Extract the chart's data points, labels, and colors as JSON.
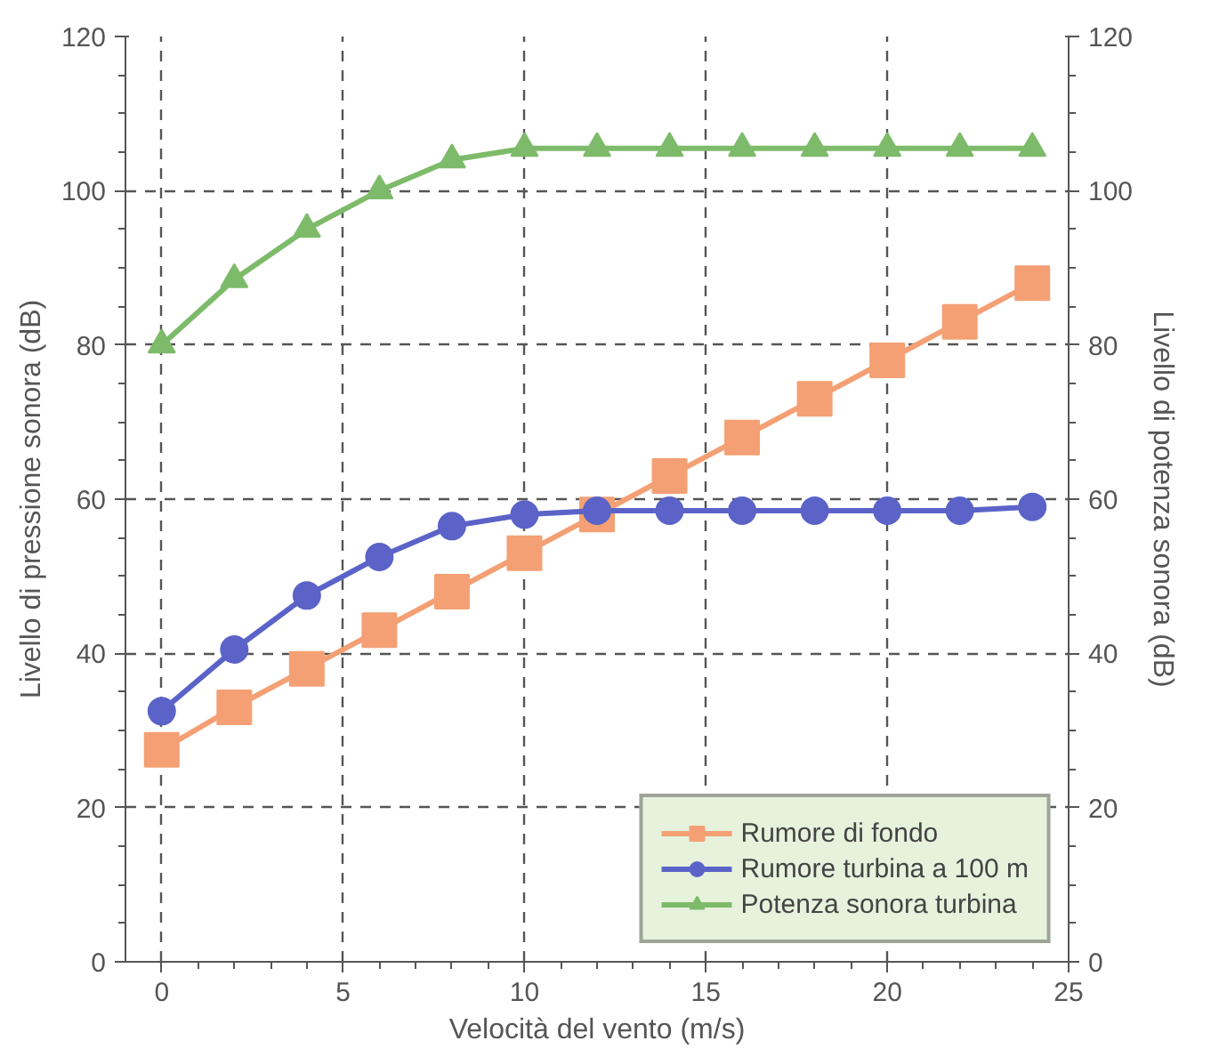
{
  "chart_data": {
    "type": "line",
    "xlabel": "Velocità del vento (m/s)",
    "ylabel": "Livello di pressione sonora (dB)",
    "y2label": "Livello di potenza sonora (dB)",
    "x": [
      0,
      2,
      4,
      6,
      8,
      10,
      12,
      14,
      16,
      18,
      20,
      22,
      24
    ],
    "series": [
      {
        "name": "Rumore di fondo",
        "color": "#f4a074",
        "marker": "square",
        "values": [
          27.5,
          33,
          38,
          43,
          48,
          53,
          58,
          63,
          68,
          73,
          78,
          83,
          88
        ]
      },
      {
        "name": "Rumore turbina a 100 m",
        "color": "#5b63c8",
        "marker": "circle",
        "values": [
          32.5,
          40.5,
          47.5,
          52.5,
          56.5,
          58,
          58.5,
          58.5,
          58.5,
          58.5,
          58.5,
          58.5,
          59
        ]
      },
      {
        "name": "Potenza sonora turbina",
        "color": "#7dbb6a",
        "marker": "triangle",
        "values": [
          80,
          88.5,
          95,
          100,
          104,
          105.5,
          105.5,
          105.5,
          105.5,
          105.5,
          105.5,
          105.5,
          105.5
        ]
      }
    ],
    "xlim": [
      -1,
      25
    ],
    "xticks": [
      0,
      5,
      10,
      15,
      20,
      25
    ],
    "ylim": [
      0,
      120
    ],
    "yticks": [
      0,
      20,
      40,
      60,
      80,
      100,
      120
    ],
    "y2lim": [
      0,
      120
    ],
    "y2ticks": [
      0,
      20,
      40,
      60,
      80,
      100,
      120
    ],
    "grid": true,
    "legend": "bottom right",
    "line_style": "solid"
  }
}
